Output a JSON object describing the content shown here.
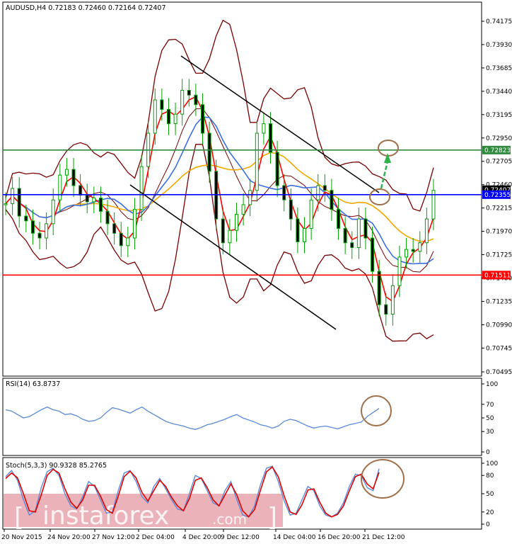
{
  "chart_data": [
    {
      "type": "line",
      "title": "AUDUSD,H4  0.72183 0.72460 0.72164 0.72407",
      "symbol": "AUDUSD",
      "timeframe": "H4",
      "ohlc": {
        "open": 0.72183,
        "high": 0.7246,
        "low": 0.72164,
        "close": 0.72407
      },
      "ylim": [
        0.70495,
        0.74175
      ],
      "y_ticks": [
        "0.74175",
        "0.73930",
        "0.73685",
        "0.73440",
        "0.73195",
        "0.72950",
        "0.72705",
        "0.72460",
        "0.72215",
        "0.71970",
        "0.71725",
        "0.71480",
        "0.71235",
        "0.70990",
        "0.70745",
        "0.70495"
      ],
      "x_ticks": [
        "20 Nov 2015",
        "24 Nov 20:00",
        "27 Nov 12:00",
        "2 Dec 04:00",
        "4 Dec 20:00",
        "9 Dec 12:00",
        "14 Dec 04:00",
        "16 Dec 20:00",
        "21 Dec 12:00"
      ],
      "price_tags": [
        {
          "label": "0.72823",
          "value": 0.72823,
          "color": "#2e8b3e"
        },
        {
          "label": "0.72407",
          "value": 0.72407,
          "color": "#000000"
        },
        {
          "label": "0.72355",
          "value": 0.72355,
          "color": "#0000ff"
        },
        {
          "label": "0.71511",
          "value": 0.71511,
          "color": "#ff0000"
        }
      ],
      "horizontal_lines": [
        {
          "value": 0.72823,
          "color": "#2e8b3e"
        },
        {
          "value": 0.72355,
          "color": "#0000ff"
        },
        {
          "value": 0.71511,
          "color": "#ff0000"
        }
      ],
      "series": [
        {
          "values": [
            0.7226,
            0.7242,
            0.7213,
            0.7208,
            0.7195,
            0.719,
            0.7205,
            0.723,
            0.7256,
            0.7262,
            0.7245,
            0.7235,
            0.7228,
            0.7232,
            0.7218,
            0.7205,
            0.7195,
            0.7182,
            0.719,
            0.722,
            0.7265,
            0.73,
            0.7335,
            0.7325,
            0.731,
            0.732,
            0.7345,
            0.734,
            0.733,
            0.73,
            0.726,
            0.721,
            0.7185,
            0.7198,
            0.7215,
            0.7225,
            0.724,
            0.73,
            0.731,
            0.728,
            0.7245,
            0.723,
            0.721,
            0.7186,
            0.72,
            0.723,
            0.7245,
            0.724,
            0.722,
            0.72,
            0.7185,
            0.718,
            0.721,
            0.719,
            0.7155,
            0.712,
            0.711,
            0.714,
            0.717,
            0.7178,
            0.7176,
            0.7185,
            0.721,
            0.724
          ]
        }
      ],
      "color": "#00a000"
    },
    {
      "type": "line",
      "title": "RSI(14) 63.8737",
      "ylim": [
        0,
        100
      ],
      "y_ticks": [
        "100",
        "70",
        "50",
        "30",
        "0"
      ],
      "series": [
        {
          "values": [
            62,
            60,
            55,
            50,
            52,
            57,
            62,
            66,
            62,
            60,
            55,
            56,
            53,
            48,
            45,
            46,
            50,
            58,
            65,
            63,
            60,
            57,
            62,
            66,
            60,
            55,
            50,
            45,
            42,
            40,
            38,
            35,
            33,
            36,
            40,
            42,
            45,
            48,
            52,
            55,
            50,
            47,
            44,
            40,
            38,
            35,
            38,
            45,
            48,
            46,
            42,
            38,
            35,
            37,
            38,
            36,
            34,
            37,
            40,
            42,
            44,
            52,
            58,
            64
          ]
        }
      ],
      "color": "#5b8bd6"
    },
    {
      "type": "line",
      "title": "Stoch(5,3,3) 90.9328 85.2765",
      "ylim": [
        0,
        100
      ],
      "y_ticks": [
        "100",
        "80",
        "50",
        "20",
        "0"
      ],
      "series": [
        {
          "values": [
            78,
            88,
            72,
            40,
            15,
            22,
            60,
            86,
            92,
            80,
            50,
            30,
            25,
            45,
            70,
            62,
            40,
            18,
            20,
            55,
            84,
            88,
            70,
            45,
            35,
            62,
            75,
            58,
            40,
            25,
            22,
            50,
            80,
            75,
            55,
            35,
            30,
            55,
            70,
            40,
            15,
            12,
            30,
            65,
            92,
            95,
            70,
            38,
            15,
            18,
            40,
            62,
            55,
            30,
            15,
            12,
            18,
            35,
            62,
            82,
            80,
            60,
            55,
            91
          ]
        },
        {
          "values": [
            75,
            84,
            76,
            50,
            22,
            20,
            48,
            80,
            90,
            84,
            58,
            36,
            26,
            40,
            64,
            64,
            46,
            24,
            18,
            46,
            78,
            87,
            76,
            52,
            38,
            55,
            72,
            62,
            44,
            30,
            22,
            42,
            72,
            76,
            60,
            40,
            30,
            48,
            66,
            48,
            22,
            12,
            24,
            56,
            86,
            94,
            78,
            46,
            20,
            16,
            32,
            56,
            58,
            36,
            18,
            12,
            16,
            30,
            55,
            78,
            82,
            66,
            58,
            85
          ]
        }
      ]
    }
  ],
  "annotation_arrow_color": "#2db34a",
  "annotation_circle_color": "#a0704a",
  "channel_color": "#000000",
  "bollinger_color": "#7a0000",
  "ma_fast_color": "#ff0000",
  "ma_mid_color": "#3a6ee8",
  "ma_slow_color": "#f2a900",
  "watermark": {
    "text": "instaforex",
    "bracket_left": "[",
    "bracket_right": "]",
    "suffix": ".com"
  }
}
